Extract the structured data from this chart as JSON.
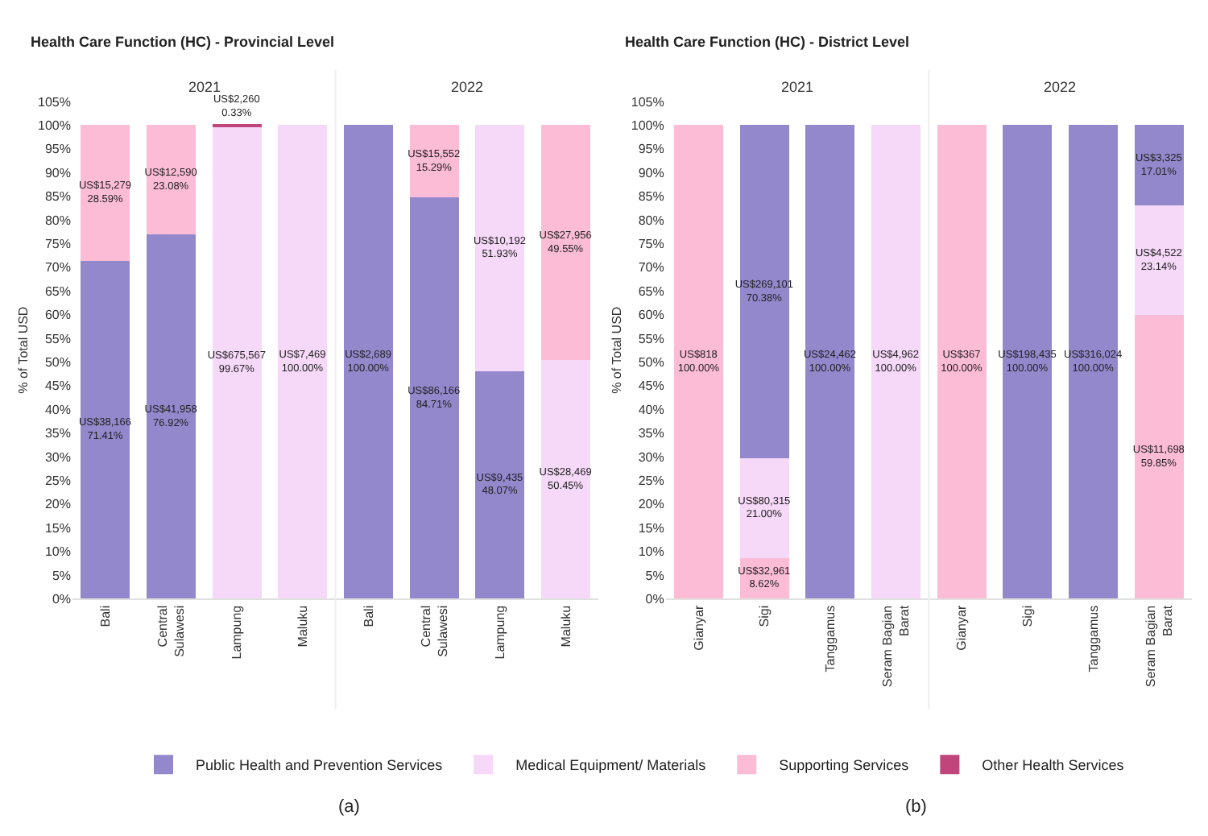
{
  "chart_data": [
    {
      "type": "bar",
      "stacked": true,
      "title": "Health Care Function (HC) - Provincial Level",
      "ylabel": "% of Total USD",
      "categories": [
        "Bali",
        "Central Sulawesi",
        "Lampung",
        "Maluku",
        "Bali",
        "Central Sulawesi",
        "Lampung",
        "Maluku"
      ],
      "series": [
        {
          "name": "Public Health and Prevention Services",
          "color": "#9488cc",
          "values": [
            71.41,
            76.92,
            null,
            null,
            100.0,
            84.71,
            48.07,
            null
          ],
          "value_labels": [
            "US$38,166\n71.41%",
            "US$41,958\n76.92%",
            null,
            null,
            "US$2,689\n100.00%",
            "US$86,166\n84.71%",
            "US$9,435\n48.07%",
            null
          ]
        },
        {
          "name": "Medical Equipment/ Materials",
          "color": "#f6d8f8",
          "values": [
            null,
            null,
            99.67,
            100.0,
            null,
            null,
            51.93,
            50.45
          ],
          "value_labels": [
            null,
            null,
            "US$675,567\n99.67%",
            "US$7,469\n100.00%",
            null,
            null,
            "US$10,192\n51.93%",
            "US$28,469\n50.45%"
          ]
        },
        {
          "name": "Supporting Services",
          "color": "#fcbcd6",
          "values": [
            28.59,
            23.08,
            null,
            null,
            null,
            15.29,
            null,
            49.55
          ],
          "value_labels": [
            "US$15,279\n28.59%",
            "US$12,590\n23.08%",
            null,
            null,
            null,
            "US$15,552\n15.29%",
            null,
            "US$27,956\n49.55%"
          ]
        },
        {
          "name": "Other Health Services",
          "color": "#c0457a",
          "values": [
            null,
            null,
            0.33,
            null,
            null,
            null,
            null,
            null
          ],
          "value_labels": [
            null,
            null,
            "US$2,260\n0.33%",
            null,
            null,
            null,
            null,
            null
          ]
        }
      ],
      "ylim": [
        0,
        105
      ],
      "yticks": [
        {
          "value": 0,
          "label": "0%"
        },
        {
          "value": 5,
          "label": "5%"
        },
        {
          "value": 10,
          "label": "10%"
        },
        {
          "value": 15,
          "label": "15%"
        },
        {
          "value": 20,
          "label": "20%"
        },
        {
          "value": 25,
          "label": "25%"
        },
        {
          "value": 30,
          "label": "30%"
        },
        {
          "value": 35,
          "label": "35%"
        },
        {
          "value": 40,
          "label": "40%"
        },
        {
          "value": 45,
          "label": "45%"
        },
        {
          "value": 50,
          "label": "50%"
        },
        {
          "value": 55,
          "label": "55%"
        },
        {
          "value": 60,
          "label": "60%"
        },
        {
          "value": 65,
          "label": "65%"
        },
        {
          "value": 70,
          "label": "70%"
        },
        {
          "value": 75,
          "label": "75%"
        },
        {
          "value": 80,
          "label": "80%"
        },
        {
          "value": 85,
          "label": "85%"
        },
        {
          "value": 90,
          "label": "90%"
        },
        {
          "value": 95,
          "label": "95%"
        },
        {
          "value": 100,
          "label": "100%"
        },
        {
          "value": 105,
          "label": "105%"
        }
      ],
      "annotations": [
        "2021",
        "2022",
        "(a)"
      ],
      "legend": "bottom"
    },
    {
      "type": "bar",
      "stacked": true,
      "title": "Health Care Function (HC) - District Level",
      "ylabel": "% of Total USD",
      "categories": [
        "Gianyar",
        "Sigi",
        "Tanggamus",
        "Seram Bagian Barat",
        "Gianyar",
        "Sigi",
        "Tanggamus",
        "Seram Bagian Barat"
      ],
      "series": [
        {
          "name": "Supporting Services",
          "color": "#fcbcd6",
          "values": [
            100.0,
            8.62,
            null,
            null,
            100.0,
            null,
            null,
            59.85
          ],
          "value_labels": [
            "US$818\n100.00%",
            "US$32,961\n8.62%",
            null,
            null,
            "US$367\n100.00%",
            null,
            null,
            "US$11,698\n59.85%"
          ]
        },
        {
          "name": "Medical Equipment/ Materials",
          "color": "#f6d8f8",
          "values": [
            null,
            21.0,
            null,
            100.0,
            null,
            null,
            null,
            23.14
          ],
          "value_labels": [
            null,
            "US$80,315\n21.00%",
            null,
            "US$4,962\n100.00%",
            null,
            null,
            null,
            "US$4,522\n23.14%"
          ]
        },
        {
          "name": "Public Health and Prevention Services",
          "color": "#9488cc",
          "values": [
            null,
            70.38,
            100.0,
            null,
            null,
            100.0,
            100.0,
            17.01
          ],
          "value_labels": [
            null,
            "US$269,101\n70.38%",
            "US$24,462\n100.00%",
            null,
            null,
            "US$198,435\n100.00%",
            "US$316,024\n100.00%",
            "US$3,325\n17.01%"
          ]
        }
      ],
      "ylim": [
        0,
        105
      ],
      "yticks": [
        {
          "value": 0,
          "label": "0%"
        },
        {
          "value": 5,
          "label": "5%"
        },
        {
          "value": 10,
          "label": "10%"
        },
        {
          "value": 15,
          "label": "15%"
        },
        {
          "value": 20,
          "label": "20%"
        },
        {
          "value": 25,
          "label": "25%"
        },
        {
          "value": 30,
          "label": "30%"
        },
        {
          "value": 35,
          "label": "35%"
        },
        {
          "value": 40,
          "label": "40%"
        },
        {
          "value": 45,
          "label": "45%"
        },
        {
          "value": 50,
          "label": "50%"
        },
        {
          "value": 55,
          "label": "55%"
        },
        {
          "value": 60,
          "label": "60%"
        },
        {
          "value": 65,
          "label": "65%"
        },
        {
          "value": 70,
          "label": "70%"
        },
        {
          "value": 75,
          "label": "75%"
        },
        {
          "value": 80,
          "label": "80%"
        },
        {
          "value": 85,
          "label": "85%"
        },
        {
          "value": 90,
          "label": "90%"
        },
        {
          "value": 95,
          "label": "95%"
        },
        {
          "value": 100,
          "label": "100%"
        },
        {
          "value": 105,
          "label": "105%"
        }
      ],
      "annotations": [
        "2021",
        "2022",
        "(b)"
      ],
      "legend": "bottom"
    }
  ]
}
